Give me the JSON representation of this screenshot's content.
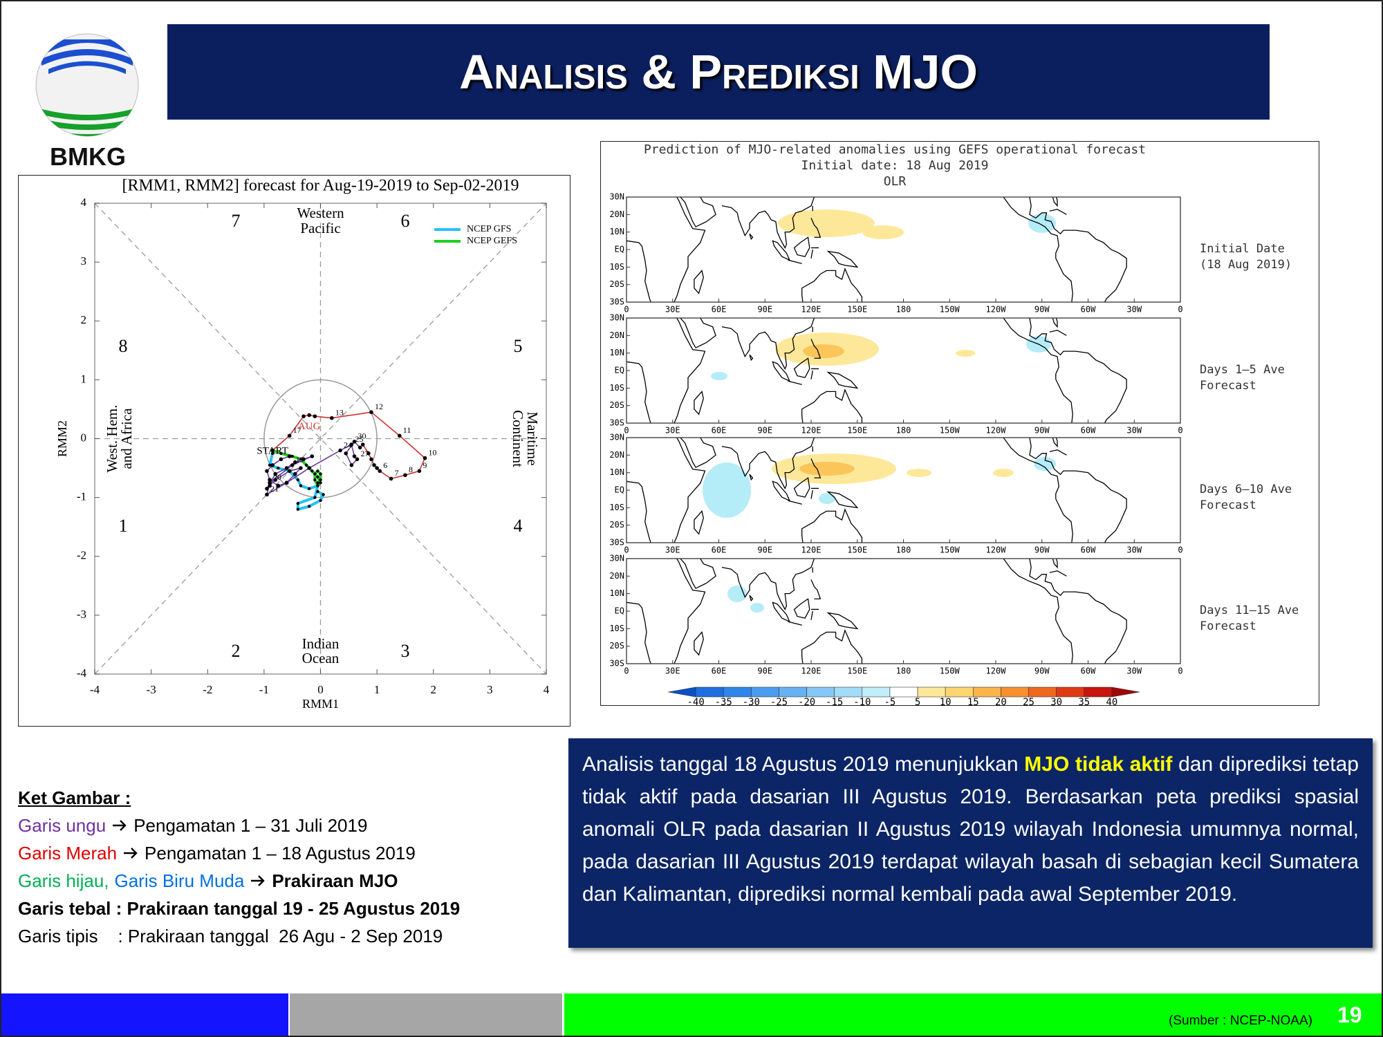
{
  "header": {
    "logo_text": "BMKG",
    "title": "Analisis & Prediksi MJO"
  },
  "rmm_chart": {
    "type": "line",
    "title": "[RMM1, RMM2] forecast for Aug-19-2019 to Sep-02-2019",
    "x_label": "RMM1",
    "y_label": "RMM2",
    "xlim": [
      -4,
      4
    ],
    "ylim": [
      -4,
      4
    ],
    "xticks": [
      -4,
      -3,
      -2,
      -1,
      0,
      1,
      2,
      3,
      4
    ],
    "yticks": [
      -4,
      -3,
      -2,
      -1,
      0,
      1,
      2,
      3,
      4
    ],
    "phases": [
      "1",
      "2",
      "3",
      "4",
      "5",
      "6",
      "7",
      "8"
    ],
    "regions": {
      "top": [
        "Western",
        "Pacific"
      ],
      "bottom": [
        "Indian",
        "Ocean"
      ],
      "left": [
        "West. Hem.",
        "and Africa"
      ],
      "right": [
        "Maritime",
        "Continent"
      ]
    },
    "annotations": [
      {
        "text": "AUG",
        "x": -0.2,
        "y": 0.2,
        "color": "#d03030"
      },
      {
        "text": "START",
        "x": -0.85,
        "y": -0.22,
        "color": "#000000"
      }
    ],
    "series": [
      {
        "name": "NCEP GFS",
        "color": "#22c3f5",
        "x": [
          -0.85,
          -0.9,
          -0.75,
          -0.55,
          -0.4,
          -0.35,
          -0.2,
          -0.05,
          -0.1,
          -0.4,
          -0.4,
          -0.2,
          0.0,
          0.05,
          -0.05
        ],
        "y": [
          -0.25,
          -0.45,
          -0.5,
          -0.55,
          -0.7,
          -0.8,
          -0.85,
          -0.8,
          -1.0,
          -1.1,
          -1.2,
          -1.15,
          -1.05,
          -0.95,
          -0.9
        ]
      },
      {
        "name": "NCEP GEFS",
        "color": "#22cc22",
        "x": [
          -0.85,
          -0.7,
          -0.5,
          -0.35,
          -0.25,
          -0.15,
          -0.05,
          0.0,
          -0.05,
          -0.1,
          -0.1,
          -0.05,
          0.0,
          0.0,
          -0.05
        ],
        "y": [
          -0.2,
          -0.25,
          -0.3,
          -0.35,
          -0.45,
          -0.55,
          -0.65,
          -0.75,
          -0.8,
          -0.7,
          -0.6,
          -0.55,
          -0.6,
          -0.7,
          -0.75
        ]
      },
      {
        "color": "#d03030",
        "x": [
          0.75,
          0.85,
          0.9,
          0.95,
          1.0,
          1.05,
          1.25,
          1.5,
          1.75,
          1.85,
          1.4,
          0.9,
          0.2,
          -0.1,
          -0.2,
          -0.3,
          -0.55,
          -0.85
        ],
        "y": [
          -0.1,
          -0.25,
          -0.35,
          -0.45,
          -0.5,
          -0.55,
          -0.68,
          -0.62,
          -0.55,
          -0.33,
          0.05,
          0.45,
          0.35,
          0.38,
          0.4,
          0.38,
          0.05,
          -0.2
        ],
        "labels": [
          null,
          null,
          null,
          null,
          null,
          "6",
          "7",
          "8",
          "9",
          "10",
          "11",
          "12",
          "13",
          null,
          null,
          null,
          "17",
          null
        ]
      },
      {
        "color": "#6a3a9a",
        "x": [
          -0.55,
          -0.7,
          -0.85,
          -0.95,
          -0.9,
          -0.75,
          -0.6,
          -0.45,
          -0.35,
          -0.55,
          -0.8,
          -0.9,
          -0.95,
          -0.8,
          -0.6,
          -0.45,
          -0.3,
          -0.15,
          -0.5,
          -0.9,
          -0.95,
          -0.6,
          -0.2,
          0.35,
          0.55,
          0.6,
          0.65,
          0.55,
          0.45,
          0.6,
          0.7
        ],
        "y": [
          -0.3,
          -0.35,
          -0.45,
          -0.55,
          -0.7,
          -0.8,
          -0.75,
          -0.6,
          -0.5,
          -0.55,
          -0.7,
          -0.8,
          -0.85,
          -0.6,
          -0.5,
          -0.4,
          -0.35,
          -0.3,
          -0.45,
          -0.75,
          -0.95,
          -0.75,
          -0.5,
          -0.2,
          -0.1,
          -0.3,
          -0.35,
          -0.45,
          -0.25,
          -0.05,
          -0.15
        ],
        "labels": [
          null,
          null,
          null,
          null,
          null,
          null,
          null,
          null,
          null,
          null,
          null,
          null,
          null,
          null,
          null,
          null,
          null,
          null,
          "19",
          "20",
          "21",
          null,
          null,
          "24",
          "25",
          null,
          "27",
          null,
          null,
          "30",
          null
        ]
      }
    ]
  },
  "map_chart": {
    "title": [
      "Prediction of MJO-related anomalies using GEFS operational forecast",
      "Initial date: 18 Aug 2019",
      "OLR"
    ],
    "panels": [
      [
        "Initial Date",
        "(18 Aug 2019)"
      ],
      [
        "Days 1–5 Ave",
        "Forecast"
      ],
      [
        "Days 6–10 Ave",
        "Forecast"
      ],
      [
        "Days 11–15 Ave",
        "Forecast"
      ]
    ],
    "lat_labels": [
      "30N",
      "20N",
      "10N",
      "EQ",
      "10S",
      "20S",
      "30S"
    ],
    "lon_labels": [
      "0",
      "30E",
      "60E",
      "90E",
      "120E",
      "150E",
      "180",
      "150W",
      "120W",
      "90W",
      "60W",
      "30W",
      "0"
    ],
    "colorbar": {
      "ticks": [
        -40,
        -35,
        -30,
        -25,
        -20,
        -15,
        -10,
        -5,
        5,
        10,
        15,
        20,
        25,
        30,
        35,
        40
      ],
      "colors": [
        "#0a50c8",
        "#1e6ee0",
        "#2f86ea",
        "#4a9cef",
        "#66b2f2",
        "#85c8f5",
        "#a3dcf8",
        "#c1eefb",
        "#ffffff",
        "#fde89a",
        "#fcd570",
        "#fbb548",
        "#f7902e",
        "#f06820",
        "#e03a15",
        "#c8150e",
        "#a00808"
      ]
    }
  },
  "legend": {
    "heading": "Ket Gambar :",
    "lines": [
      [
        {
          "text": "Garis ungu",
          "color": "#7030a0"
        },
        {
          "text": "Pengamatan 1 – 31 Juli 2019",
          "arrow": true
        }
      ],
      [
        {
          "text": "Garis Merah",
          "color": "#e00000"
        },
        {
          "text": "Pengamatan 1 – 18 Agustus 2019",
          "arrow": true
        }
      ],
      [
        {
          "text": "Garis hijau,",
          "color": "#00b050"
        },
        {
          "text": "Garis Biru Muda",
          "color": "#0070e0"
        },
        {
          "text": "Prakiraan MJO",
          "arrow": true,
          "bold": true
        }
      ],
      [
        {
          "text": "Garis tebal : Prakiraan tanggal 19 - 25 Agustus 2019",
          "bold": true
        }
      ],
      [
        {
          "text": "Garis tipis    : Prakiraan tanggal  26 Agu - 2 Sep 2019"
        }
      ]
    ]
  },
  "text_box": {
    "parts": [
      {
        "text": "Analisis tanggal 18 Agustus 2019 menunjukkan "
      },
      {
        "text": "MJO tidak aktif",
        "highlight": true
      },
      {
        "text": " dan diprediksi tetap tidak aktif pada dasarian III Agustus 2019. Berdasarkan peta prediksi spasial anomali OLR pada dasarian II Agustus 2019 wilayah Indonesia umumnya normal, pada dasarian III Agustus 2019 terdapat wilayah basah di sebagian kecil Sumatera dan Kalimantan, diprediksi normal kembali pada awal September 2019."
      }
    ]
  },
  "footer": {
    "source": "(Sumber : NCEP-NOAA)",
    "page": "19"
  }
}
